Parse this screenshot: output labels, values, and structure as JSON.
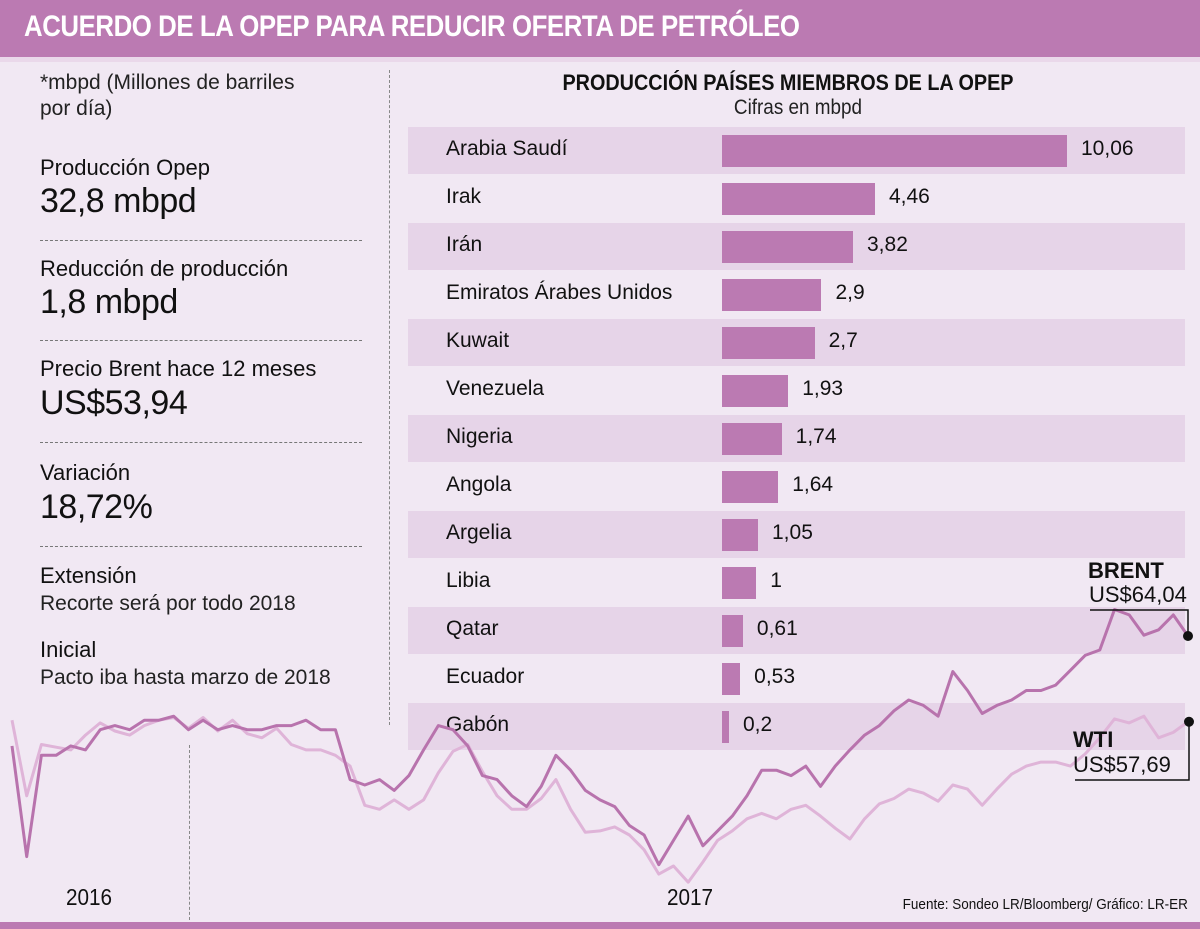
{
  "header": {
    "title": "ACUERDO DE LA OPEP PARA REDUCIR OFERTA DE PETRÓLEO"
  },
  "left_panel": {
    "note": [
      "*mbpd (Millones de barriles",
      "por día)"
    ],
    "stats": [
      {
        "label": "Producción Opep",
        "value": "32,8 mbpd"
      },
      {
        "label": "Reducción de producción",
        "value": "1,8 mbpd"
      },
      {
        "label": "Precio Brent hace 12 meses",
        "value": "US$53,94"
      },
      {
        "label": "Variación",
        "value": "18,72%"
      }
    ],
    "details": [
      {
        "label": "Extensión",
        "text": "Recorte será por todo 2018"
      },
      {
        "label": "Inicial",
        "text": "Pacto iba hasta marzo de 2018"
      }
    ]
  },
  "colors": {
    "accent": "#bb7ab2",
    "background": "#f1e8f3",
    "row_shade": "#e6d4e8",
    "brent_line": "#b873ad",
    "wti_line": "#dfb4d8"
  },
  "chart_data": [
    {
      "type": "bar",
      "orientation": "horizontal",
      "title": "PRODUCCIÓN PAÍSES MIEMBROS DE LA OPEP",
      "subtitle": "Cifras en mbpd",
      "categories": [
        "Arabia Saudí",
        "Irak",
        "Irán",
        "Emiratos Árabes Unidos",
        "Kuwait",
        "Venezuela",
        "Nigeria",
        "Angola",
        "Argelia",
        "Libia",
        "Qatar",
        "Ecuador",
        "Gabón"
      ],
      "values": [
        10.06,
        4.46,
        3.82,
        2.9,
        2.7,
        1.93,
        1.74,
        1.64,
        1.05,
        1,
        0.61,
        0.53,
        0.2
      ],
      "value_labels": [
        "10,06",
        "4,46",
        "3,82",
        "2,9",
        "2,7",
        "1,93",
        "1,74",
        "1,64",
        "1,05",
        "1",
        "0,61",
        "0,53",
        "0,2"
      ],
      "xlabel": "",
      "ylabel": "",
      "xlim": [
        0,
        10.06
      ],
      "grid": false
    },
    {
      "type": "line",
      "title": "",
      "xlabel": "",
      "ylabel": "US$",
      "x_tick_labels": [
        "2016",
        "2017"
      ],
      "grid": false,
      "series": [
        {
          "name": "BRENT",
          "end_label": "US$64,04",
          "end_value": 64.04,
          "values": [
            55.9,
            47.7,
            55.2,
            55.2,
            55.9,
            55.6,
            57.1,
            57.4,
            57.1,
            57.8,
            57.8,
            58.1,
            57.1,
            57.8,
            57.1,
            57.4,
            57.1,
            57.1,
            57.4,
            57.4,
            57.8,
            57.1,
            57.1,
            53.4,
            53.0,
            53.4,
            52.6,
            53.7,
            55.6,
            57.4,
            57.1,
            55.9,
            53.7,
            53.4,
            52.2,
            51.4,
            52.9,
            55.2,
            54.1,
            52.6,
            51.9,
            51.4,
            50.0,
            49.3,
            47.1,
            48.9,
            50.7,
            48.5,
            49.6,
            50.7,
            52.2,
            54.1,
            54.1,
            53.7,
            54.4,
            52.9,
            54.4,
            55.6,
            56.7,
            57.4,
            58.5,
            59.3,
            58.9,
            58.1,
            61.4,
            60.0,
            58.3,
            58.9,
            59.3,
            60.0,
            60.0,
            60.4,
            61.5,
            62.6,
            63.0,
            66.0,
            65.6,
            64.1,
            64.5,
            65.6,
            64.04
          ]
        },
        {
          "name": "WTI",
          "end_label": "US$57,69",
          "end_value": 57.69,
          "values": [
            57.8,
            52.2,
            56.0,
            55.8,
            55.6,
            56.7,
            57.6,
            57.0,
            56.7,
            57.4,
            57.8,
            58.0,
            57.2,
            58.0,
            57.0,
            57.8,
            56.8,
            56.5,
            57.2,
            56.0,
            55.6,
            55.6,
            55.2,
            54.4,
            51.5,
            51.2,
            51.9,
            51.2,
            51.9,
            53.9,
            55.5,
            56.0,
            54.0,
            52.2,
            51.2,
            51.2,
            52.0,
            53.4,
            51.2,
            49.5,
            49.6,
            49.9,
            49.3,
            48.2,
            46.4,
            47.0,
            45.8,
            47.3,
            48.9,
            49.6,
            50.5,
            50.9,
            50.5,
            51.2,
            51.5,
            50.7,
            49.8,
            49.0,
            50.5,
            51.6,
            52.0,
            52.7,
            52.4,
            51.8,
            53.0,
            52.7,
            51.5,
            52.7,
            53.8,
            54.4,
            54.7,
            54.7,
            54.4,
            55.3,
            56.5,
            57.9,
            57.6,
            58.1,
            56.5,
            56.9,
            57.69
          ]
        }
      ]
    }
  ],
  "source": "Fuente: Sondeo LR/Bloomberg/ Gráfico: LR-ER"
}
